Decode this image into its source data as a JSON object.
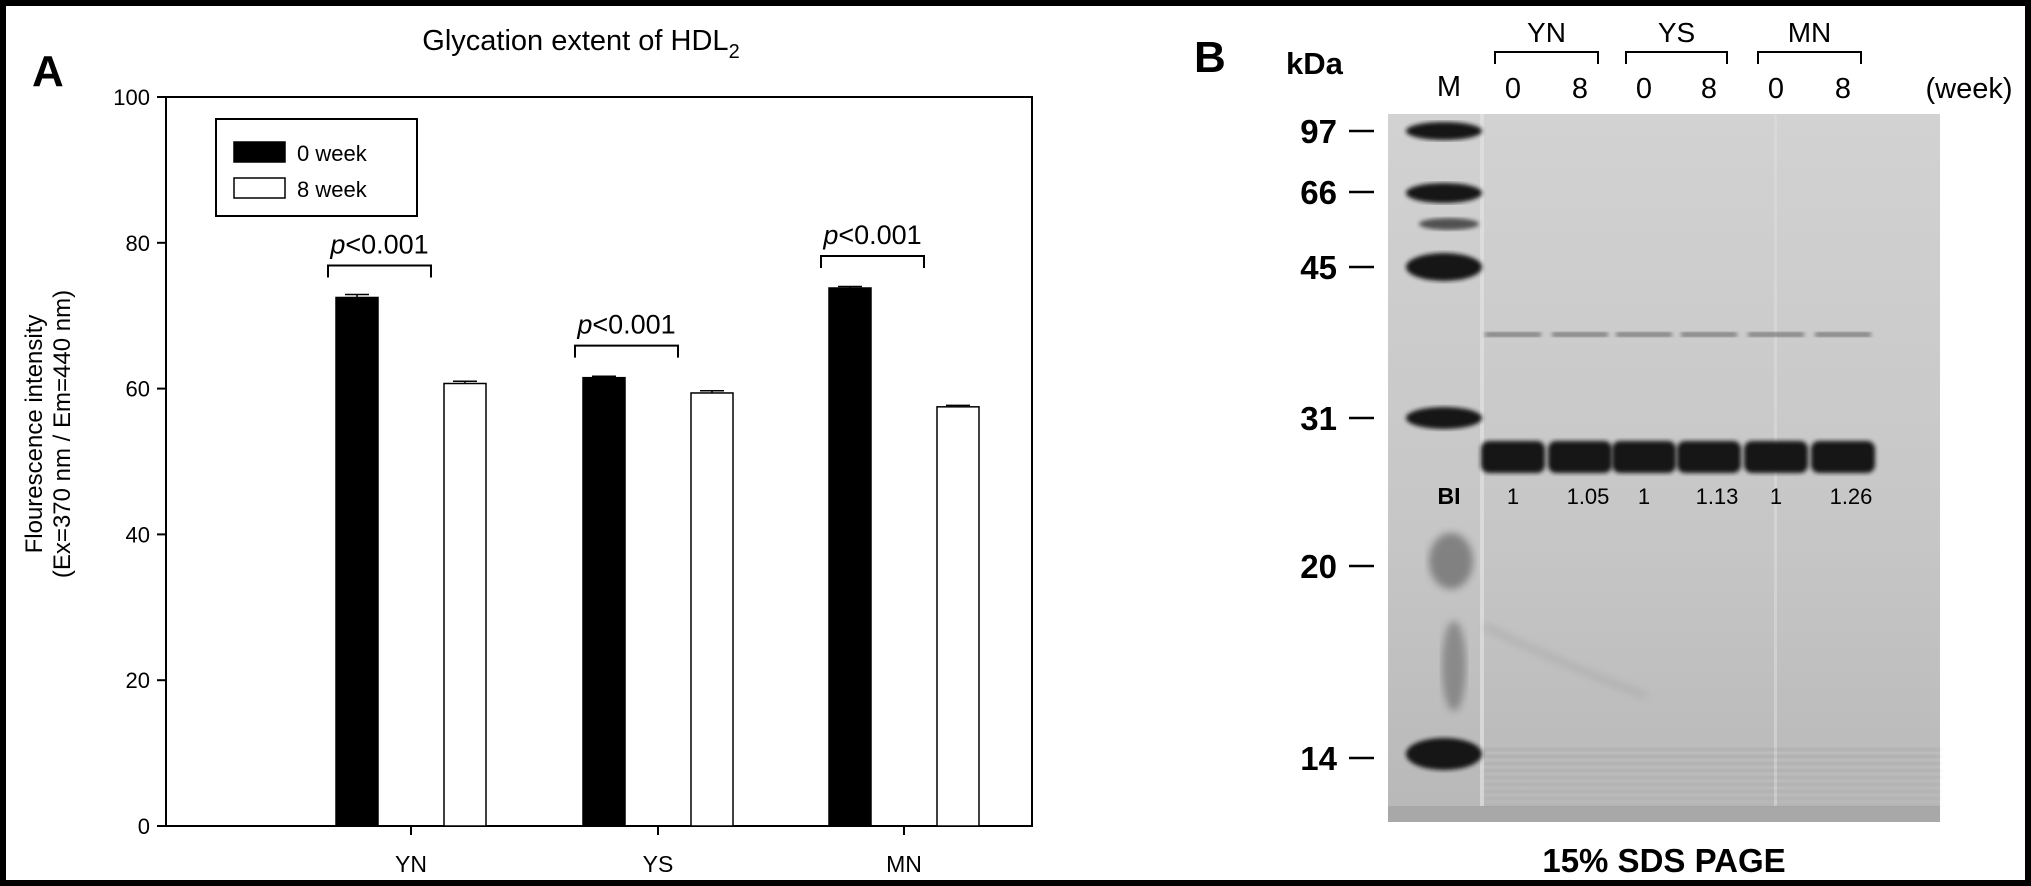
{
  "panel_a": {
    "letter": "A",
    "chart_data": {
      "type": "bar",
      "title": "Glycation extent of HDL",
      "title_subscript": "2",
      "ylabel_line1": "Flourescence intensity",
      "ylabel_line2": "(Ex=370 nm / Em=440 nm)",
      "xlabel": "",
      "categories": [
        "YN",
        "YS",
        "MN"
      ],
      "series": [
        {
          "name": "0 week",
          "values": [
            72.5,
            61.5,
            73.8
          ],
          "errors": [
            0.4,
            0.2,
            0.2
          ],
          "color": "#000000"
        },
        {
          "name": "8 week",
          "values": [
            60.7,
            59.4,
            57.5
          ],
          "errors": [
            0.3,
            0.3,
            0.2
          ],
          "color": "#ffffff"
        }
      ],
      "ylim": [
        0,
        100
      ],
      "yticks": [
        "0",
        "20",
        "40",
        "60",
        "80",
        "100"
      ],
      "legend": "top-left",
      "grid": false,
      "annotations": [
        {
          "category": "YN",
          "p_prefix": "p",
          "p_text": "<0.001"
        },
        {
          "category": "YS",
          "p_prefix": "p",
          "p_text": "<0.001"
        },
        {
          "category": "MN",
          "p_prefix": "p",
          "p_text": "<0.001"
        }
      ]
    }
  },
  "panel_b": {
    "letter": "B",
    "unit_label": "kDa",
    "marker_lane_label": "M",
    "groups": [
      "YN",
      "YS",
      "MN"
    ],
    "lane_labels": [
      "0",
      "8",
      "0",
      "8",
      "0",
      "8"
    ],
    "week_label": "(week)",
    "markers": [
      "97",
      "66",
      "45",
      "31",
      "20",
      "14"
    ],
    "bi_label": "BI",
    "band_intensities": [
      "1",
      "1.05",
      "1",
      "1.13",
      "1",
      "1.26"
    ],
    "caption": "15% SDS PAGE",
    "gel_color": "#c9c9c9",
    "band_color": "#121212"
  }
}
